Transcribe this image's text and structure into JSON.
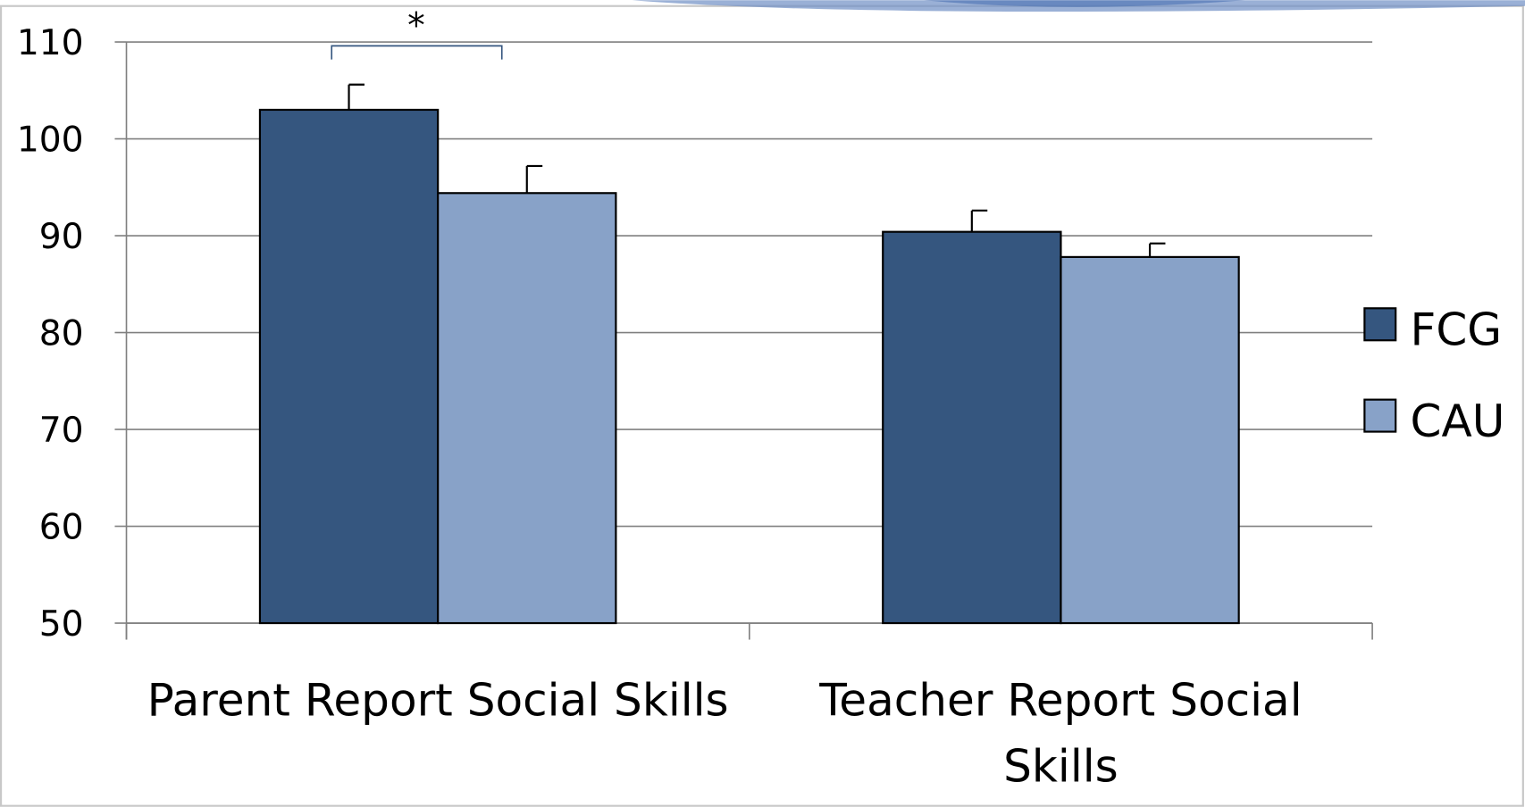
{
  "chart_data": {
    "type": "bar",
    "annotation": "*",
    "categories": [
      "Parent Report Social Skills",
      "Teacher Report Social Skills"
    ],
    "series": [
      {
        "name": "FCG",
        "color": "#35567f",
        "values": [
          103,
          90.4
        ],
        "errors": [
          2.6,
          2.2
        ]
      },
      {
        "name": "CAU",
        "color": "#88a2c8",
        "values": [
          94.4,
          87.8
        ],
        "errors": [
          2.8,
          1.4
        ]
      }
    ],
    "ylim": [
      50,
      110
    ],
    "yticks": [
      50,
      60,
      70,
      80,
      90,
      100,
      110
    ],
    "grid": true,
    "legend": "right"
  }
}
